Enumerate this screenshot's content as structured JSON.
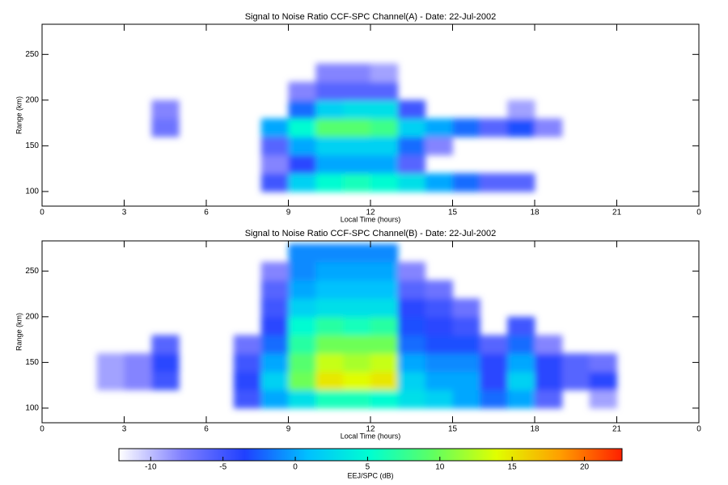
{
  "chart_data": [
    {
      "type": "heatmap",
      "title": "Signal to Noise Ratio CCF-SPC Channel(A) - Date: 22-Jul-2002",
      "xlabel": "Local Time (hours)",
      "ylabel": "Range (km)",
      "xlim": [
        0,
        24
      ],
      "ylim": [
        84,
        283
      ],
      "xticks": [
        0,
        3,
        6,
        9,
        12,
        15,
        18,
        21,
        {
          "value": 24,
          "label": "0"
        }
      ],
      "yticks": [
        100,
        150,
        200,
        250
      ],
      "xbins": [
        0,
        1,
        2,
        3,
        4,
        5,
        6,
        7,
        8,
        9,
        10,
        11,
        12,
        13,
        14,
        15,
        16,
        17,
        18,
        19,
        20,
        21,
        22,
        23,
        24
      ],
      "ybins": [
        80,
        100,
        120,
        140,
        160,
        180,
        200,
        220,
        240,
        260,
        280
      ],
      "z": [
        [
          null,
          null,
          null,
          null,
          null,
          null,
          null,
          null,
          null,
          null,
          null,
          null,
          null,
          null,
          null,
          null,
          null,
          null,
          null,
          null,
          null,
          null,
          null,
          null
        ],
        [
          null,
          null,
          null,
          null,
          null,
          null,
          null,
          null,
          -5,
          2,
          5,
          6,
          5,
          3,
          0,
          -2,
          -6,
          -6,
          null,
          null,
          null,
          null,
          null,
          null
        ],
        [
          null,
          null,
          null,
          null,
          null,
          null,
          null,
          null,
          -8,
          -4,
          0,
          0,
          0,
          -6,
          null,
          null,
          null,
          null,
          null,
          null,
          null,
          null,
          null,
          null
        ],
        [
          null,
          null,
          null,
          null,
          null,
          null,
          null,
          null,
          -6,
          0,
          2,
          2,
          2,
          -2,
          -8,
          null,
          null,
          null,
          null,
          null,
          null,
          null,
          null,
          null
        ],
        [
          null,
          null,
          null,
          null,
          -7,
          null,
          null,
          null,
          0,
          5,
          9,
          9,
          8,
          2,
          0,
          -2,
          -6,
          -3,
          -8,
          null,
          null,
          null,
          null,
          null
        ],
        [
          null,
          null,
          null,
          null,
          -8,
          null,
          null,
          null,
          null,
          -2,
          2,
          3,
          3,
          -5,
          null,
          null,
          null,
          -9,
          null,
          null,
          null,
          null,
          null,
          null
        ],
        [
          null,
          null,
          null,
          null,
          null,
          null,
          null,
          null,
          null,
          -8,
          -6,
          -6,
          -6,
          null,
          null,
          null,
          null,
          null,
          null,
          null,
          null,
          null,
          null,
          null
        ],
        [
          null,
          null,
          null,
          null,
          null,
          null,
          null,
          null,
          null,
          null,
          -8,
          -8,
          -9,
          null,
          null,
          null,
          null,
          null,
          null,
          null,
          null,
          null,
          null,
          null
        ],
        [
          null,
          null,
          null,
          null,
          null,
          null,
          null,
          null,
          null,
          null,
          null,
          null,
          null,
          null,
          null,
          null,
          null,
          null,
          null,
          null,
          null,
          null,
          null,
          null
        ],
        [
          null,
          null,
          null,
          null,
          null,
          null,
          null,
          null,
          null,
          null,
          null,
          null,
          null,
          null,
          null,
          null,
          null,
          null,
          null,
          null,
          null,
          null,
          null,
          null
        ]
      ]
    },
    {
      "type": "heatmap",
      "title": "Signal to Noise Ratio CCF-SPC Channel(B) - Date: 22-Jul-2002",
      "xlabel": "Local Time (hours)",
      "ylabel": "Range (km)",
      "xlim": [
        0,
        24
      ],
      "ylim": [
        84,
        283
      ],
      "xticks": [
        0,
        3,
        6,
        9,
        12,
        15,
        18,
        21,
        {
          "value": 24,
          "label": "0"
        }
      ],
      "yticks": [
        100,
        150,
        200,
        250
      ],
      "xbins": [
        0,
        1,
        2,
        3,
        4,
        5,
        6,
        7,
        8,
        9,
        10,
        11,
        12,
        13,
        14,
        15,
        16,
        17,
        18,
        19,
        20,
        21,
        22,
        23,
        24
      ],
      "ybins": [
        80,
        100,
        120,
        140,
        160,
        180,
        200,
        220,
        240,
        260,
        280
      ],
      "z": [
        [
          null,
          null,
          null,
          null,
          null,
          null,
          null,
          null,
          null,
          null,
          null,
          null,
          null,
          null,
          null,
          null,
          null,
          null,
          null,
          null,
          null,
          null,
          null,
          null
        ],
        [
          null,
          null,
          null,
          null,
          null,
          null,
          null,
          -5,
          0,
          3,
          6,
          6,
          5,
          3,
          2,
          0,
          -2,
          0,
          -6,
          null,
          -9,
          null,
          null,
          null
        ],
        [
          null,
          null,
          -9,
          -8,
          -5,
          null,
          null,
          -4,
          2,
          10,
          15,
          14,
          15,
          2,
          0,
          0,
          -4,
          2,
          -4,
          -6,
          -4,
          null,
          null,
          null
        ],
        [
          null,
          null,
          -9,
          -8,
          -4,
          null,
          null,
          -5,
          0,
          9,
          13,
          12,
          13,
          0,
          -1,
          -1,
          -4,
          0,
          -4,
          -6,
          -7,
          null,
          null,
          null
        ],
        [
          null,
          null,
          null,
          null,
          -6,
          null,
          null,
          -7,
          -2,
          7,
          10,
          10,
          10,
          -2,
          -3,
          -3,
          -6,
          -2,
          -8,
          null,
          null,
          null,
          null,
          null
        ],
        [
          null,
          null,
          null,
          null,
          null,
          null,
          null,
          null,
          -4,
          5,
          7,
          6,
          7,
          -3,
          -4,
          -5,
          null,
          -5,
          null,
          null,
          null,
          null,
          null,
          null
        ],
        [
          null,
          null,
          null,
          null,
          null,
          null,
          null,
          null,
          -5,
          2,
          3,
          3,
          3,
          -4,
          -5,
          -7,
          null,
          null,
          null,
          null,
          null,
          null,
          null,
          null
        ],
        [
          null,
          null,
          null,
          null,
          null,
          null,
          null,
          null,
          -6,
          0,
          1,
          1,
          1,
          -6,
          -7,
          null,
          null,
          null,
          null,
          null,
          null,
          null,
          null,
          null
        ],
        [
          null,
          null,
          null,
          null,
          null,
          null,
          null,
          null,
          -8,
          -1,
          0,
          0,
          0,
          -8,
          null,
          null,
          null,
          null,
          null,
          null,
          null,
          null,
          null,
          null
        ],
        [
          null,
          null,
          null,
          null,
          null,
          null,
          null,
          null,
          null,
          -1,
          -1,
          -1,
          -1,
          null,
          null,
          null,
          null,
          null,
          null,
          null,
          null,
          null,
          null,
          null
        ]
      ]
    }
  ],
  "colorbar": {
    "label": "EEJ/SPC (dB)",
    "clim": [
      -12.2,
      22.6
    ],
    "ticks": [
      -10,
      -5,
      0,
      5,
      10,
      15,
      20
    ],
    "colormap": [
      "#ffffff",
      "#8080ff",
      "#2040ff",
      "#00c0ff",
      "#00ffd0",
      "#60ff60",
      "#e0ff00",
      "#ffa000",
      "#ff2000"
    ]
  }
}
